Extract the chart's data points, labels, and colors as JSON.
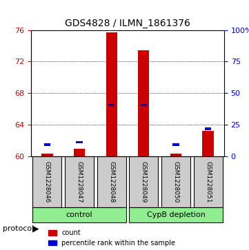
{
  "title": "GDS4828 / ILMN_1861376",
  "samples": [
    "GSM1228046",
    "GSM1228047",
    "GSM1228048",
    "GSM1228049",
    "GSM1228050",
    "GSM1228051"
  ],
  "groups": [
    "control",
    "control",
    "control",
    "CypB depletion",
    "CypB depletion",
    "CypB depletion"
  ],
  "group_labels": [
    "control",
    "CypB depletion"
  ],
  "group_colors": [
    "#90EE90",
    "#90EE90"
  ],
  "red_values": [
    60.4,
    61.0,
    75.7,
    73.4,
    60.4,
    63.2
  ],
  "blue_values": [
    61.5,
    61.8,
    66.5,
    66.5,
    61.5,
    63.5
  ],
  "ymin": 60,
  "ymax": 76,
  "yticks_left": [
    60,
    64,
    68,
    72,
    76
  ],
  "yticks_right": [
    0,
    25,
    50,
    75,
    100
  ],
  "ylabel_left_color": "#cc0000",
  "ylabel_right_color": "#0000cc",
  "bar_width": 0.35,
  "bar_color_red": "#cc0000",
  "bar_color_blue": "#0000cc",
  "background_color": "#ffffff",
  "grid_color": "#000000",
  "sample_box_color": "#cccccc",
  "group_box_color": "#90EE90",
  "protocol_label": "protocol",
  "legend_count": "count",
  "legend_percentile": "percentile rank within the sample"
}
